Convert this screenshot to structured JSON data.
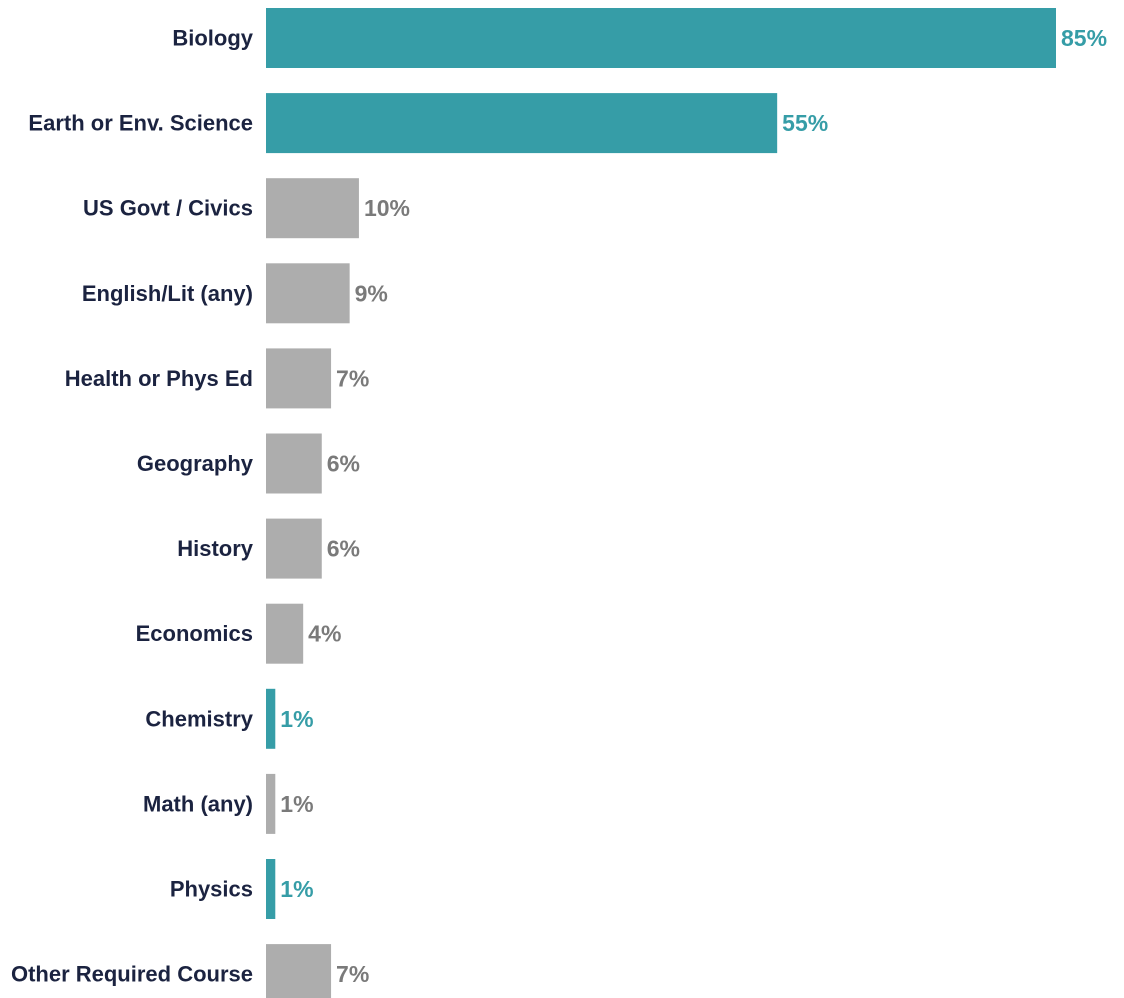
{
  "chart_data": {
    "type": "bar",
    "orientation": "horizontal",
    "categories": [
      "Biology",
      "Earth or Env. Science",
      "US Govt / Civics",
      "English/Lit (any)",
      "Health or Phys Ed",
      "Geography",
      "History",
      "Economics",
      "Chemistry",
      "Math (any)",
      "Physics",
      "Other Required Course"
    ],
    "values": [
      85,
      55,
      10,
      9,
      7,
      6,
      6,
      4,
      1,
      1,
      1,
      7
    ],
    "value_labels": [
      "85%",
      "55%",
      "10%",
      "9%",
      "7%",
      "6%",
      "6%",
      "4%",
      "1%",
      "1%",
      "1%",
      "7%"
    ],
    "highlighted": [
      true,
      true,
      false,
      false,
      false,
      false,
      false,
      false,
      true,
      false,
      true,
      false
    ],
    "title": "",
    "xlabel": "",
    "ylabel": "",
    "xlim": [
      0,
      85
    ],
    "grid": false,
    "legend": "none",
    "colors": {
      "highlight_bar": "#369da7",
      "default_bar": "#adadad",
      "highlight_value_text": "#369da7",
      "default_value_text": "#7a7a7a",
      "category_text": "#1b2340"
    }
  }
}
